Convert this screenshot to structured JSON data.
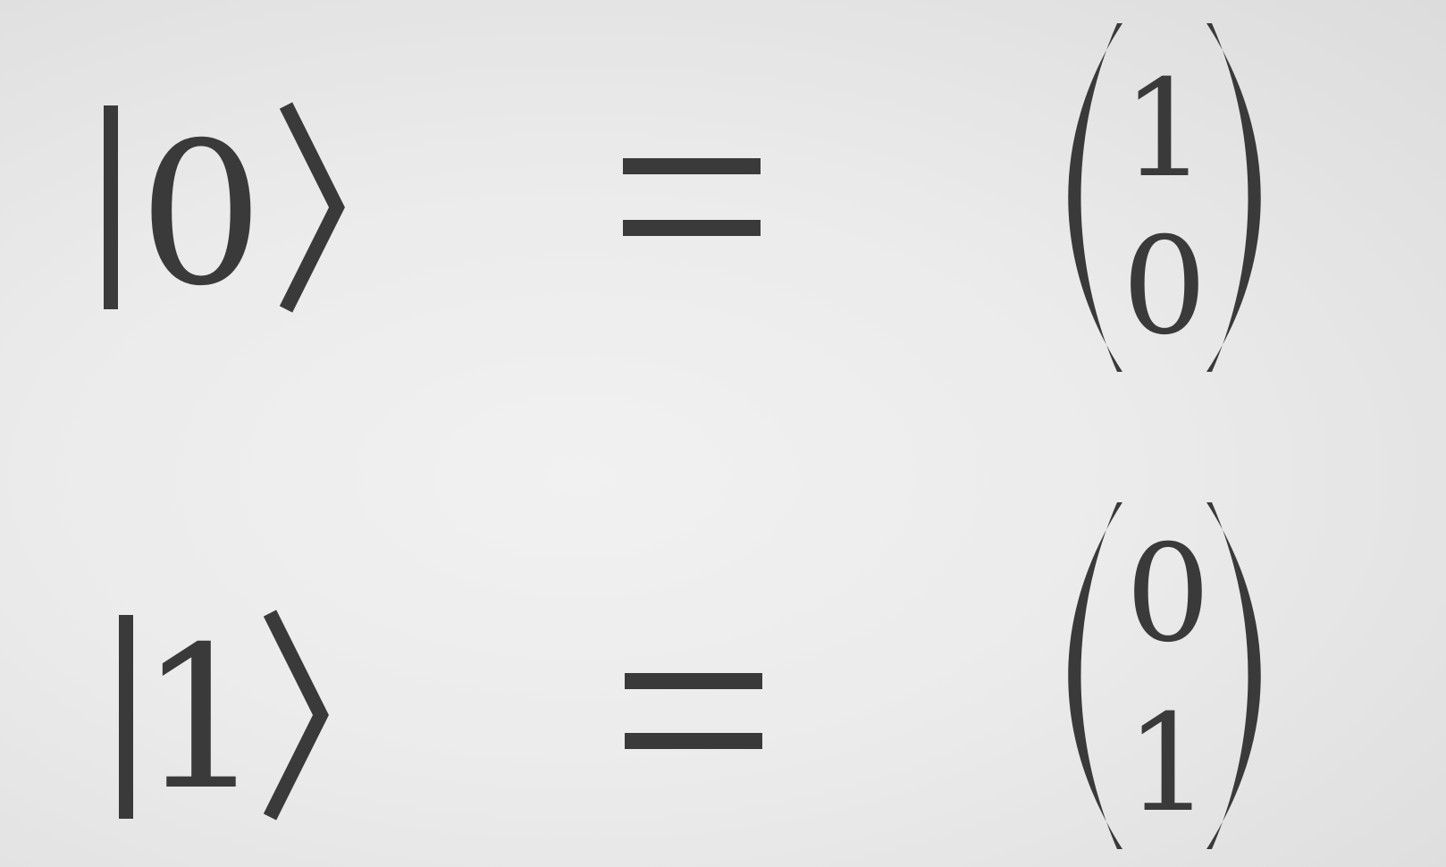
{
  "equations": [
    {
      "ket_label": "0",
      "vector": [
        "1",
        "0"
      ]
    },
    {
      "ket_label": "1",
      "vector": [
        "0",
        "1"
      ]
    }
  ],
  "colors": {
    "ink": "#3a3a3a",
    "background": "#ebebeb"
  }
}
